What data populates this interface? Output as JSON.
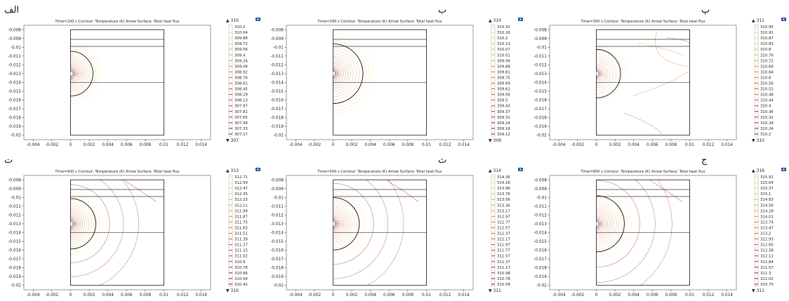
{
  "chart_data": [
    {
      "type": "contour",
      "panel_label": "الف",
      "title": "Time=100 s   Contour: Temperature (K)   Arrow Surface: Total heat flux",
      "x_ticks": [
        "-0.004",
        "-0.002",
        "0",
        "0.002",
        "0.004",
        "0.006",
        "0.008",
        "0.01",
        "0.012",
        "0.014"
      ],
      "y_ticks": [
        "-0.008",
        "-0.009",
        "-0.01",
        "-0.011",
        "-0.012",
        "-0.013",
        "-0.014",
        "-0.015",
        "-0.016",
        "-0.017",
        "-0.018",
        "-0.019",
        "-0.02"
      ],
      "xlim": [
        -0.005,
        0.015
      ],
      "ylim": [
        -0.0205,
        -0.0075
      ],
      "colorbar_max": "▲ 310",
      "colorbar_min": "▼ 307",
      "levels": [
        "310.2",
        "310.04",
        "309.88",
        "309.72",
        "309.56",
        "309.4",
        "309.24",
        "309.08",
        "308.92",
        "308.76",
        "308.61",
        "308.45",
        "308.29",
        "308.13",
        "307.97",
        "307.81",
        "307.65",
        "307.49",
        "307.33",
        "307.17"
      ],
      "field": "local",
      "front_radius": 0.0024,
      "far_field": false
    },
    {
      "type": "contour",
      "panel_label": "ب",
      "title": "Time=200 s   Contour: Temperature (K)   Arrow Surface: Total heat flux",
      "x_ticks": [
        "-0.004",
        "-0.002",
        "0",
        "0.002",
        "0.004",
        "0.006",
        "0.008",
        "0.01",
        "0.012",
        "0.014"
      ],
      "y_ticks": [
        "-0.008",
        "-0.009",
        "-0.01",
        "-0.011",
        "-0.012",
        "-0.013",
        "-0.014",
        "-0.015",
        "-0.016",
        "-0.017",
        "-0.018",
        "-0.019",
        "-0.02"
      ],
      "xlim": [
        -0.005,
        0.015
      ],
      "ylim": [
        -0.0205,
        -0.0075
      ],
      "colorbar_max": "▲ 310",
      "colorbar_min": "▼ 309",
      "levels": [
        "310.32",
        "310.26",
        "310.2",
        "310.13",
        "310.07",
        "310.01",
        "309.94",
        "309.88",
        "309.81",
        "309.75",
        "309.69",
        "309.62",
        "309.56",
        "309.5",
        "309.43",
        "309.37",
        "309.31",
        "309.24",
        "309.18",
        "309.12"
      ],
      "field": "local",
      "front_radius": 0.0032,
      "far_field": false
    },
    {
      "type": "contour",
      "panel_label": "پ",
      "title": "Time=300 s   Contour: Temperature (K)   Arrow Surface: Total heat flux",
      "x_ticks": [
        "-0.004",
        "-0.002",
        "0",
        "0.002",
        "0.004",
        "0.006",
        "0.008",
        "0.01",
        "0.012",
        "0.014"
      ],
      "y_ticks": [
        "-0.008",
        "-0.009",
        "-0.01",
        "-0.011",
        "-0.012",
        "-0.013",
        "-0.014",
        "-0.015",
        "-0.016",
        "-0.017",
        "-0.018",
        "-0.019",
        "-0.02"
      ],
      "xlim": [
        -0.005,
        0.015
      ],
      "ylim": [
        -0.0205,
        -0.0075
      ],
      "colorbar_max": "▲ 311",
      "colorbar_min": "▼ 310",
      "levels": [
        "310.95",
        "310.91",
        "310.87",
        "310.83",
        "310.8",
        "310.76",
        "310.72",
        "310.68",
        "310.64",
        "310.6",
        "310.56",
        "310.52",
        "310.48",
        "310.44",
        "310.4",
        "310.36",
        "310.32",
        "310.28",
        "310.24",
        "310.2"
      ],
      "field": "saddle",
      "front_radius": 0.0026,
      "far_field": true
    },
    {
      "type": "contour",
      "panel_label": "ت",
      "title": "Time=400 s   Contour: Temperature (K)   Arrow Surface: Total heat flux",
      "x_ticks": [
        "-0.004",
        "-0.002",
        "0",
        "0.002",
        "0.004",
        "0.006",
        "0.008",
        "0.01",
        "0.012",
        "0.014"
      ],
      "y_ticks": [
        "-0.008",
        "-0.009",
        "-0.01",
        "-0.011",
        "-0.012",
        "-0.013",
        "-0.014",
        "-0.015",
        "-0.016",
        "-0.017",
        "-0.018",
        "-0.019",
        "-0.02"
      ],
      "xlim": [
        -0.005,
        0.015
      ],
      "ylim": [
        -0.0205,
        -0.0075
      ],
      "colorbar_max": "▲ 313",
      "colorbar_min": "▼ 310",
      "levels": [
        "312.71",
        "312.59",
        "312.47",
        "312.35",
        "312.23",
        "312.11",
        "311.99",
        "311.87",
        "311.75",
        "311.63",
        "311.51",
        "311.39",
        "311.27",
        "311.15",
        "311.02",
        "310.9",
        "310.78",
        "310.66",
        "310.54",
        "310.42"
      ],
      "field": "radial",
      "front_radius": 0.0027,
      "far_field": true
    },
    {
      "type": "contour",
      "panel_label": "ث",
      "title": "Time=500 s   Contour: Temperature (K)   Arrow Surface: Total heat flux",
      "x_ticks": [
        "-0.004",
        "-0.002",
        "0",
        "0.002",
        "0.004",
        "0.006",
        "0.008",
        "0.01",
        "0.012",
        "0.014"
      ],
      "y_ticks": [
        "-0.008",
        "-0.009",
        "-0.01",
        "-0.011",
        "-0.012",
        "-0.013",
        "-0.014",
        "-0.015",
        "-0.016",
        "-0.017",
        "-0.018",
        "-0.019",
        "-0.02"
      ],
      "xlim": [
        -0.005,
        0.015
      ],
      "ylim": [
        -0.0205,
        -0.0075
      ],
      "colorbar_max": "▲ 314",
      "colorbar_min": "▼ 311",
      "levels": [
        "314.36",
        "314.16",
        "313.96",
        "313.76",
        "313.56",
        "313.36",
        "313.17",
        "312.97",
        "312.77",
        "312.57",
        "312.37",
        "312.17",
        "311.97",
        "311.77",
        "311.57",
        "311.37",
        "311.17",
        "310.98",
        "310.78",
        "310.58"
      ],
      "field": "radial",
      "front_radius": 0.0028,
      "far_field": true
    },
    {
      "type": "contour",
      "panel_label": "ج",
      "title": "Time=600 s   Contour: Temperature (K)   Arrow Surface: Total heat flux",
      "x_ticks": [
        "-0.004",
        "-0.002",
        "0",
        "0.002",
        "0.004",
        "0.006",
        "0.008",
        "0.01",
        "0.012",
        "0.014"
      ],
      "y_ticks": [
        "-0.008",
        "-0.009",
        "-0.01",
        "-0.011",
        "-0.012",
        "-0.013",
        "-0.014",
        "-0.015",
        "-0.016",
        "-0.017",
        "-0.018",
        "-0.019",
        "-0.02"
      ],
      "xlim": [
        -0.005,
        0.015
      ],
      "ylim": [
        -0.0205,
        -0.0075
      ],
      "colorbar_max": "▲ 316",
      "colorbar_min": "▼ 311",
      "levels": [
        "315.91",
        "315.64",
        "315.37",
        "315.1",
        "314.83",
        "314.56",
        "314.28",
        "314.01",
        "313.74",
        "313.47",
        "313.2",
        "312.93",
        "312.65",
        "312.38",
        "312.11",
        "311.84",
        "311.57",
        "311.3",
        "311.02",
        "310.75"
      ],
      "field": "radial",
      "front_radius": 0.003,
      "far_field": true
    }
  ],
  "geometry": {
    "domain_x": [
      0,
      0.01
    ],
    "domain_y": [
      -0.02,
      -0.008
    ],
    "layer_lines_y": [
      -0.0091,
      -0.0099,
      -0.014
    ],
    "source_center": [
      0,
      -0.013
    ],
    "source_radius": 0.0003
  },
  "colors": {
    "hot": "#8b0000",
    "warm": "#d2691e",
    "cool": "#f0e68c",
    "axis": "#222222",
    "domain": "#111111",
    "icon": "#1f4e9a"
  }
}
